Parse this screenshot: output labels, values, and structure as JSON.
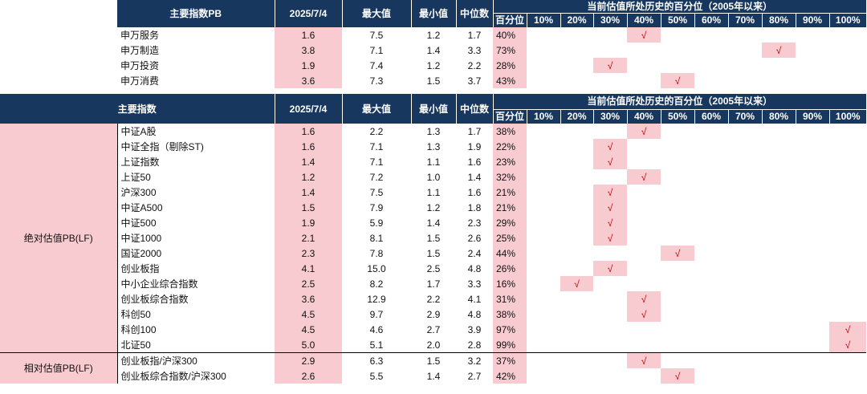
{
  "table1": {
    "header": {
      "index_label": "主要指数PB",
      "date_label": "2025/7/4",
      "max_label": "最大值",
      "min_label": "最小值",
      "median_label": "中位数",
      "history_label": "当前估值所处历史的百分位（2005年以来）",
      "pct_label": "百分位",
      "buckets": [
        "10%",
        "20%",
        "30%",
        "40%",
        "50%",
        "60%",
        "70%",
        "80%",
        "90%",
        "100%"
      ]
    },
    "rows": [
      {
        "name": "申万服务",
        "current": "1.6",
        "max": "7.5",
        "min": "1.2",
        "median": "1.7",
        "pct": "40%",
        "bucket": 3
      },
      {
        "name": "申万制造",
        "current": "3.8",
        "max": "7.1",
        "min": "1.4",
        "median": "3.3",
        "pct": "73%",
        "bucket": 7
      },
      {
        "name": "申万投资",
        "current": "1.9",
        "max": "7.4",
        "min": "1.2",
        "median": "2.2",
        "pct": "28%",
        "bucket": 2
      },
      {
        "name": "申万消费",
        "current": "3.6",
        "max": "7.3",
        "min": "1.5",
        "median": "3.7",
        "pct": "43%",
        "bucket": 4
      }
    ]
  },
  "table2": {
    "header": {
      "index_label": "主要指数",
      "date_label": "2025/7/4",
      "max_label": "最大值",
      "min_label": "最小值",
      "median_label": "中位数",
      "history_label": "当前估值所处历史的百分位（2005年以来）",
      "pct_label": "百分位",
      "buckets": [
        "10%",
        "20%",
        "30%",
        "40%",
        "50%",
        "60%",
        "70%",
        "80%",
        "90%",
        "100%"
      ]
    },
    "groups": [
      {
        "label": "绝对估值PB(LF)",
        "rows": [
          {
            "name": "中证A股",
            "current": "1.6",
            "max": "2.2",
            "min": "1.3",
            "median": "1.7",
            "pct": "38%",
            "bucket": 3
          },
          {
            "name": "中证全指（剔除ST)",
            "current": "1.6",
            "max": "7.1",
            "min": "1.3",
            "median": "1.9",
            "pct": "22%",
            "bucket": 2
          },
          {
            "name": "上证指数",
            "current": "1.4",
            "max": "7.1",
            "min": "1.1",
            "median": "1.6",
            "pct": "23%",
            "bucket": 2
          },
          {
            "name": "上证50",
            "current": "1.2",
            "max": "7.2",
            "min": "1.0",
            "median": "1.4",
            "pct": "32%",
            "bucket": 3
          },
          {
            "name": "沪深300",
            "current": "1.4",
            "max": "7.5",
            "min": "1.1",
            "median": "1.6",
            "pct": "21%",
            "bucket": 2
          },
          {
            "name": "中证A500",
            "current": "1.5",
            "max": "7.9",
            "min": "1.2",
            "median": "1.8",
            "pct": "21%",
            "bucket": 2
          },
          {
            "name": "中证500",
            "current": "1.9",
            "max": "5.9",
            "min": "1.4",
            "median": "2.3",
            "pct": "29%",
            "bucket": 2
          },
          {
            "name": "中证1000",
            "current": "2.1",
            "max": "8.1",
            "min": "1.5",
            "median": "2.6",
            "pct": "25%",
            "bucket": 2
          },
          {
            "name": "国证2000",
            "current": "2.3",
            "max": "7.8",
            "min": "1.5",
            "median": "2.4",
            "pct": "44%",
            "bucket": 4
          },
          {
            "name": "创业板指",
            "current": "4.1",
            "max": "15.0",
            "min": "2.5",
            "median": "4.8",
            "pct": "26%",
            "bucket": 2
          },
          {
            "name": "中小企业综合指数",
            "current": "2.5",
            "max": "8.2",
            "min": "1.7",
            "median": "3.3",
            "pct": "16%",
            "bucket": 1
          },
          {
            "name": "创业板综合指数",
            "current": "3.6",
            "max": "12.9",
            "min": "2.2",
            "median": "4.1",
            "pct": "31%",
            "bucket": 3
          },
          {
            "name": "科创50",
            "current": "4.5",
            "max": "9.7",
            "min": "2.9",
            "median": "4.8",
            "pct": "38%",
            "bucket": 3
          },
          {
            "name": "科创100",
            "current": "4.5",
            "max": "4.6",
            "min": "2.7",
            "median": "3.9",
            "pct": "97%",
            "bucket": 9
          },
          {
            "name": "北证50",
            "current": "5.0",
            "max": "5.1",
            "min": "2.0",
            "median": "2.8",
            "pct": "99%",
            "bucket": 9
          }
        ]
      },
      {
        "label": "相对估值PB(LF)",
        "rows": [
          {
            "name": "创业板指/沪深300",
            "current": "2.9",
            "max": "6.3",
            "min": "1.5",
            "median": "3.2",
            "pct": "37%",
            "bucket": 3
          },
          {
            "name": "创业板综合指数/沪深300",
            "current": "2.6",
            "max": "5.5",
            "min": "1.4",
            "median": "2.7",
            "pct": "42%",
            "bucket": 4
          }
        ]
      }
    ],
    "check_mark": "√"
  }
}
